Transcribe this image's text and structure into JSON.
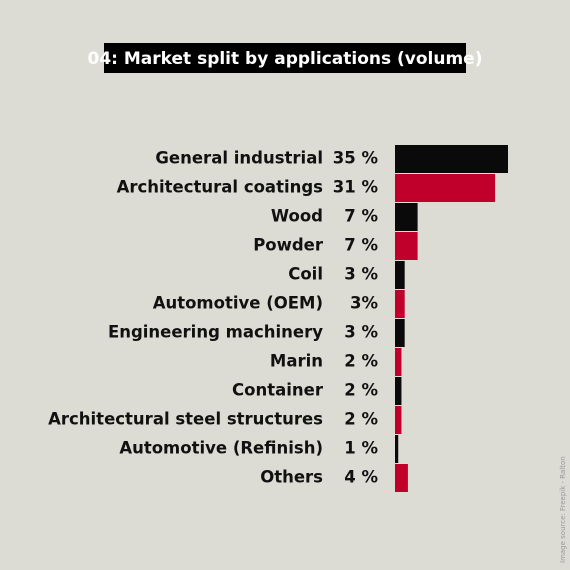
{
  "chart_data": {
    "type": "bar",
    "orientation": "horizontal",
    "title": "04: Market split by applications (volume)",
    "categories": [
      "General industrial",
      "Architectural coatings",
      "Wood",
      "Powder",
      "Coil",
      "Automotive (OEM)",
      "Engineering machinery",
      "Marin",
      "Container",
      "Architectural steel structures",
      "Automotive (Refinish)",
      "Others"
    ],
    "values": [
      35,
      31,
      7,
      7,
      3,
      3,
      3,
      2,
      2,
      2,
      1,
      4
    ],
    "value_labels": [
      "35 %",
      "31 %",
      "7 %",
      "7 %",
      "3 %",
      "3%",
      "3 %",
      "2 %",
      "2 %",
      "2 %",
      "1 %",
      "4 %"
    ],
    "colors": [
      "#0a0a0a",
      "#c0002a",
      "#0a0a0a",
      "#c0002a",
      "#0a0a0a",
      "#c0002a",
      "#0a0a0a",
      "#c0002a",
      "#0a0a0a",
      "#c0002a",
      "#0a0a0a",
      "#c0002a"
    ],
    "source": "Image source: Freepik - Ralton"
  }
}
